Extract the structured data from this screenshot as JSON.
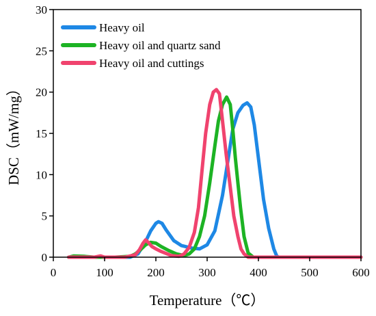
{
  "chart_data": {
    "type": "line",
    "title": "",
    "xlabel": "Temperature（℃）",
    "ylabel": "DSC（mW/mg）",
    "xlim": [
      0,
      600
    ],
    "ylim": [
      0,
      30
    ],
    "xticks": [
      0,
      100,
      200,
      300,
      400,
      500,
      600
    ],
    "yticks": [
      0,
      5,
      10,
      15,
      20,
      25,
      30
    ],
    "grid": false,
    "legend_position": "top-left",
    "series": [
      {
        "name": "Heavy oil",
        "color": "#1E88E5",
        "x": [
          30,
          100,
          150,
          165,
          180,
          190,
          200,
          205,
          212,
          220,
          235,
          250,
          270,
          285,
          300,
          315,
          330,
          340,
          350,
          360,
          370,
          378,
          385,
          392,
          400,
          410,
          420,
          430,
          436,
          440,
          460,
          500,
          600
        ],
        "y": [
          0,
          0,
          0,
          0.4,
          1.9,
          3.2,
          4.1,
          4.3,
          4.1,
          3.3,
          2.0,
          1.4,
          1.1,
          1.0,
          1.5,
          3.2,
          7.5,
          11.5,
          15.5,
          17.5,
          18.4,
          18.7,
          18.2,
          16.0,
          12.0,
          7.0,
          3.5,
          1.0,
          0.1,
          0,
          0,
          0,
          0
        ]
      },
      {
        "name": "Heavy oil and quartz sand",
        "color": "#1DB324",
        "x": [
          30,
          40,
          60,
          80,
          120,
          150,
          160,
          170,
          180,
          190,
          200,
          210,
          225,
          240,
          255,
          265,
          275,
          285,
          295,
          305,
          315,
          322,
          330,
          338,
          345,
          350,
          355,
          360,
          365,
          372,
          380,
          390,
          420,
          600
        ],
        "y": [
          0,
          0.15,
          0.1,
          0,
          0,
          0.1,
          0.4,
          0.9,
          1.5,
          1.8,
          1.7,
          1.3,
          0.8,
          0.4,
          0.2,
          0.4,
          1.0,
          2.5,
          5.0,
          9.0,
          13.5,
          16.5,
          18.5,
          19.4,
          18.5,
          15.5,
          12.0,
          9.0,
          6.0,
          2.5,
          0.5,
          0,
          0,
          0
        ]
      },
      {
        "name": "Heavy oil and cuttings",
        "color": "#F0436E",
        "x": [
          30,
          80,
          92,
          100,
          140,
          160,
          168,
          175,
          180,
          185,
          192,
          200,
          210,
          230,
          245,
          255,
          265,
          275,
          283,
          290,
          297,
          305,
          312,
          318,
          324,
          330,
          337,
          345,
          352,
          360,
          366,
          372,
          380,
          420,
          600
        ],
        "y": [
          0,
          0,
          0.15,
          0,
          0,
          0.3,
          0.9,
          1.7,
          2.1,
          1.8,
          1.3,
          1.0,
          0.7,
          0.2,
          0.1,
          0.4,
          1.2,
          3.0,
          6.0,
          10.5,
          15.0,
          18.5,
          20.0,
          20.3,
          19.8,
          16.5,
          12.5,
          8.5,
          5.0,
          2.5,
          1.0,
          0.4,
          0,
          0,
          0
        ]
      }
    ]
  }
}
